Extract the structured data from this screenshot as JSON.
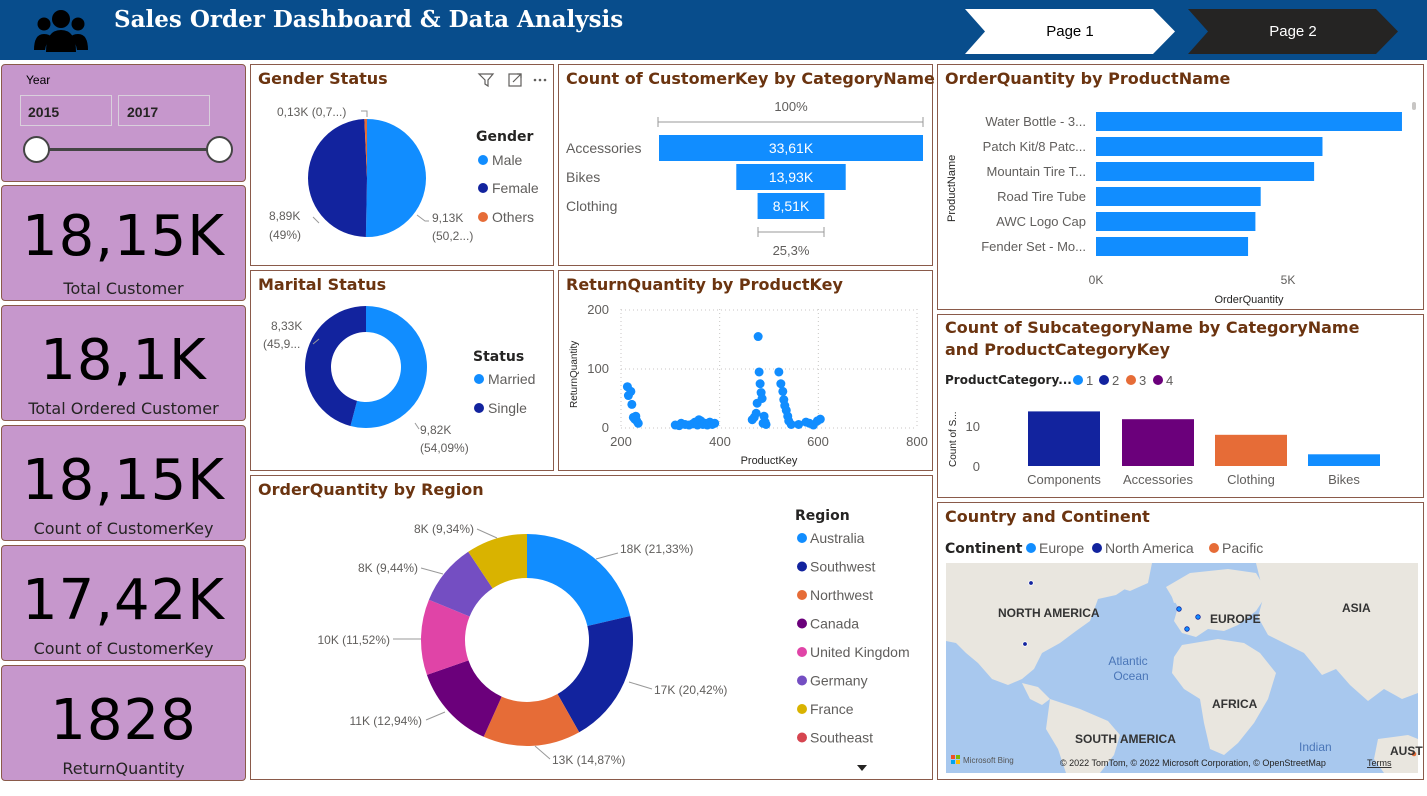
{
  "header": {
    "title": "Sales Order Dashboard & Data Analysis",
    "logo_icon": "people-group-icon",
    "nav": [
      {
        "label": "Page 1",
        "active": true
      },
      {
        "label": "Page 2",
        "active": false
      }
    ],
    "colors": {
      "bar": "#084d8c",
      "active_tab": "#ffffff",
      "inactive_tab": "#252423"
    }
  },
  "year_slicer": {
    "label": "Year",
    "from": "2015",
    "to": "2017"
  },
  "kpis": [
    {
      "value": "18,15K",
      "label": "Total Customer"
    },
    {
      "value": "18,1K",
      "label": "Total Ordered Customer"
    },
    {
      "value": "18,15K",
      "label": "Count of CustomerKey"
    },
    {
      "value": "17,42K",
      "label": "Count of CustomerKey"
    },
    {
      "value": "1828",
      "label": "ReturnQuantity"
    }
  ],
  "gender": {
    "title": "Gender Status",
    "legend_title": "Gender",
    "toolbar_icons": [
      "filter-icon",
      "focus-mode-icon",
      "more-options-icon"
    ],
    "slices": [
      {
        "name": "Male",
        "value": 9.13,
        "label": "9,13K",
        "sub": "(50,2...)",
        "color": "#118dff"
      },
      {
        "name": "Female",
        "value": 8.89,
        "label": "8,89K",
        "sub": "(49%)",
        "color": "#12239e"
      },
      {
        "name": "Others",
        "value": 0.13,
        "label": "0,13K (0,7...)",
        "sub": "",
        "color": "#e66c37"
      }
    ]
  },
  "category_funnel": {
    "title": "Count of CustomerKey by CategoryName",
    "top_label": "100%",
    "bottom_label": "25,3%",
    "color": "#118dff",
    "rows": [
      {
        "name": "Accessories",
        "value": 33.61,
        "label": "33,61K"
      },
      {
        "name": "Bikes",
        "value": 13.93,
        "label": "13,93K"
      },
      {
        "name": "Clothing",
        "value": 8.51,
        "label": "8,51K"
      }
    ]
  },
  "product_bars": {
    "title": "OrderQuantity by ProductName",
    "ylabel": "ProductName",
    "xlabel": "OrderQuantity",
    "ticks": [
      "0K",
      "5K"
    ],
    "color": "#118dff",
    "rows": [
      {
        "name": "Water Bottle - 3...",
        "value": 7968
      },
      {
        "name": "Patch Kit/8 Patc...",
        "value": 5898
      },
      {
        "name": "Mountain Tire T...",
        "value": 5680
      },
      {
        "name": "Road Tire Tube",
        "value": 4289
      },
      {
        "name": "AWC Logo Cap",
        "value": 4151
      },
      {
        "name": "Fender Set - Mo...",
        "value": 3960
      }
    ]
  },
  "marital": {
    "title": "Marital Status",
    "legend_title": "Status",
    "slices": [
      {
        "name": "Married",
        "value": 9.82,
        "label": "9,82K",
        "sub": "(54,09%)",
        "color": "#118dff"
      },
      {
        "name": "Single",
        "value": 8.33,
        "label": "8,33K",
        "sub": "(45,9...",
        "color": "#12239e"
      }
    ]
  },
  "return_scatter": {
    "title": "ReturnQuantity by ProductKey",
    "xlabel": "ProductKey",
    "ylabel": "ReturnQuantity",
    "xticks": [
      "200",
      "400",
      "600",
      "800"
    ],
    "yticks": [
      "0",
      "100",
      "200"
    ],
    "color": "#118dff"
  },
  "subcategory": {
    "title": "Count of SubcategoryName by CategoryName and ProductCategoryKey",
    "legend_title": "ProductCategory...",
    "ylabel": "Count of S...",
    "yticks": [
      "0",
      "10"
    ],
    "legend": [
      {
        "name": "1",
        "color": "#118dff"
      },
      {
        "name": "2",
        "color": "#12239e"
      },
      {
        "name": "3",
        "color": "#e66c37"
      },
      {
        "name": "4",
        "color": "#6b007b"
      }
    ],
    "bars": [
      {
        "name": "Components",
        "value": 14,
        "color": "#12239e"
      },
      {
        "name": "Accessories",
        "value": 12,
        "color": "#6b007b"
      },
      {
        "name": "Clothing",
        "value": 8,
        "color": "#e66c37"
      },
      {
        "name": "Bikes",
        "value": 3,
        "color": "#118dff"
      }
    ]
  },
  "region": {
    "title": "OrderQuantity by Region",
    "legend_title": "Region",
    "slices": [
      {
        "name": "Australia",
        "label": "18K (21,33%)",
        "pct": 21.33,
        "color": "#118dff"
      },
      {
        "name": "Southwest",
        "label": "17K (20,42%)",
        "pct": 20.42,
        "color": "#12239e"
      },
      {
        "name": "Northwest",
        "label": "13K (14,87%)",
        "pct": 14.87,
        "color": "#e66c37"
      },
      {
        "name": "Canada",
        "label": "11K (12,94%)",
        "pct": 12.94,
        "color": "#6b007b"
      },
      {
        "name": "United Kingdom",
        "label": "10K (11,52%)",
        "pct": 11.52,
        "color": "#e044a7"
      },
      {
        "name": "Germany",
        "label": "8K (9,44%)",
        "pct": 9.44,
        "color": "#744ec2"
      },
      {
        "name": "France",
        "label": "8K (9,34%)",
        "pct": 9.34,
        "color": "#d9b300"
      },
      {
        "name": "Southeast",
        "label": "",
        "pct": 0.0,
        "color": "#d64550"
      }
    ]
  },
  "map": {
    "title": "Country and Continent",
    "legend_title": "Continent",
    "legend": [
      {
        "name": "Europe",
        "color": "#118dff"
      },
      {
        "name": "North America",
        "color": "#12239e"
      },
      {
        "name": "Pacific",
        "color": "#e66c37"
      }
    ],
    "labels": {
      "north_america": "NORTH AMERICA",
      "europe": "EUROPE",
      "asia": "ASIA",
      "atlantic": "Atlantic",
      "ocean": "Ocean",
      "africa": "AFRICA",
      "south_america": "SOUTH AMERICA",
      "indian": "Indian",
      "aust": "AUST"
    },
    "bing": "Microsoft Bing",
    "copyright": "© 2022 TomTom, © 2022 Microsoft Corporation, © OpenStreetMap",
    "terms": "Terms"
  }
}
